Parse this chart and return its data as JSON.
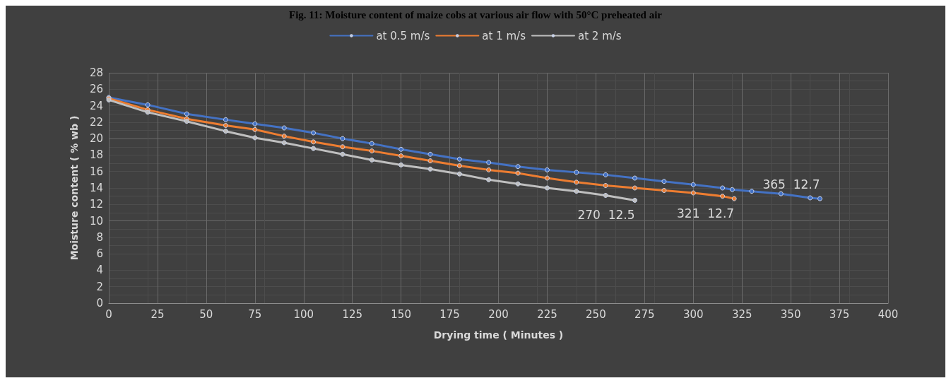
{
  "chart_data": {
    "type": "line",
    "title": "Fig. 11: Moisture content of maize cobs at various air flow with 50°C preheated air",
    "xlabel": "Drying time ( Minutes )",
    "ylabel": "Moisture content ( % wb )",
    "xlim": [
      0,
      400
    ],
    "xticks": [
      0,
      25,
      50,
      75,
      100,
      125,
      150,
      175,
      200,
      225,
      250,
      275,
      300,
      325,
      350,
      375,
      400
    ],
    "ylim": [
      0,
      28
    ],
    "yticks": [
      0,
      2,
      4,
      6,
      8,
      10,
      12,
      14,
      16,
      18,
      20,
      22,
      24,
      26,
      28
    ],
    "grid": true,
    "legend": "top",
    "marker": "circle",
    "line_style": "solid",
    "series": [
      {
        "name": "at 0.5 m/s",
        "color": "#4472c4",
        "x": [
          0,
          20,
          40,
          60,
          75,
          90,
          105,
          120,
          135,
          150,
          165,
          180,
          195,
          210,
          225,
          240,
          255,
          270,
          285,
          300,
          315,
          320,
          330,
          345,
          360,
          365
        ],
        "values": [
          25.0,
          24.1,
          23.0,
          22.3,
          21.8,
          21.3,
          20.7,
          20.0,
          19.4,
          18.7,
          18.1,
          17.5,
          17.1,
          16.6,
          16.2,
          15.9,
          15.6,
          15.2,
          14.8,
          14.4,
          14.0,
          13.8,
          13.6,
          13.3,
          12.8,
          12.7
        ]
      },
      {
        "name": "at 1 m/s",
        "color": "#ed7d31",
        "x": [
          0,
          20,
          40,
          60,
          75,
          90,
          105,
          120,
          135,
          150,
          165,
          180,
          195,
          210,
          225,
          240,
          255,
          270,
          285,
          300,
          315,
          321
        ],
        "values": [
          24.9,
          23.5,
          22.4,
          21.6,
          21.1,
          20.3,
          19.6,
          19.0,
          18.5,
          17.9,
          17.3,
          16.7,
          16.2,
          15.8,
          15.2,
          14.7,
          14.3,
          14.0,
          13.7,
          13.4,
          13.0,
          12.7
        ]
      },
      {
        "name": "at 2 m/s",
        "color": "#bfbfbf",
        "x": [
          0,
          20,
          40,
          60,
          75,
          90,
          105,
          120,
          135,
          150,
          165,
          180,
          195,
          210,
          225,
          240,
          255,
          270
        ],
        "values": [
          24.7,
          23.2,
          22.1,
          20.9,
          20.1,
          19.5,
          18.8,
          18.1,
          17.4,
          16.8,
          16.3,
          15.7,
          15.0,
          14.5,
          14.0,
          13.6,
          13.1,
          12.5
        ]
      }
    ],
    "annotations": [
      {
        "text": "270  12.5",
        "x": 270,
        "y": 12.5
      },
      {
        "text": "321  12.7",
        "x": 321,
        "y": 12.7
      },
      {
        "text": "365  12.7",
        "x": 365,
        "y": 12.7
      }
    ]
  }
}
